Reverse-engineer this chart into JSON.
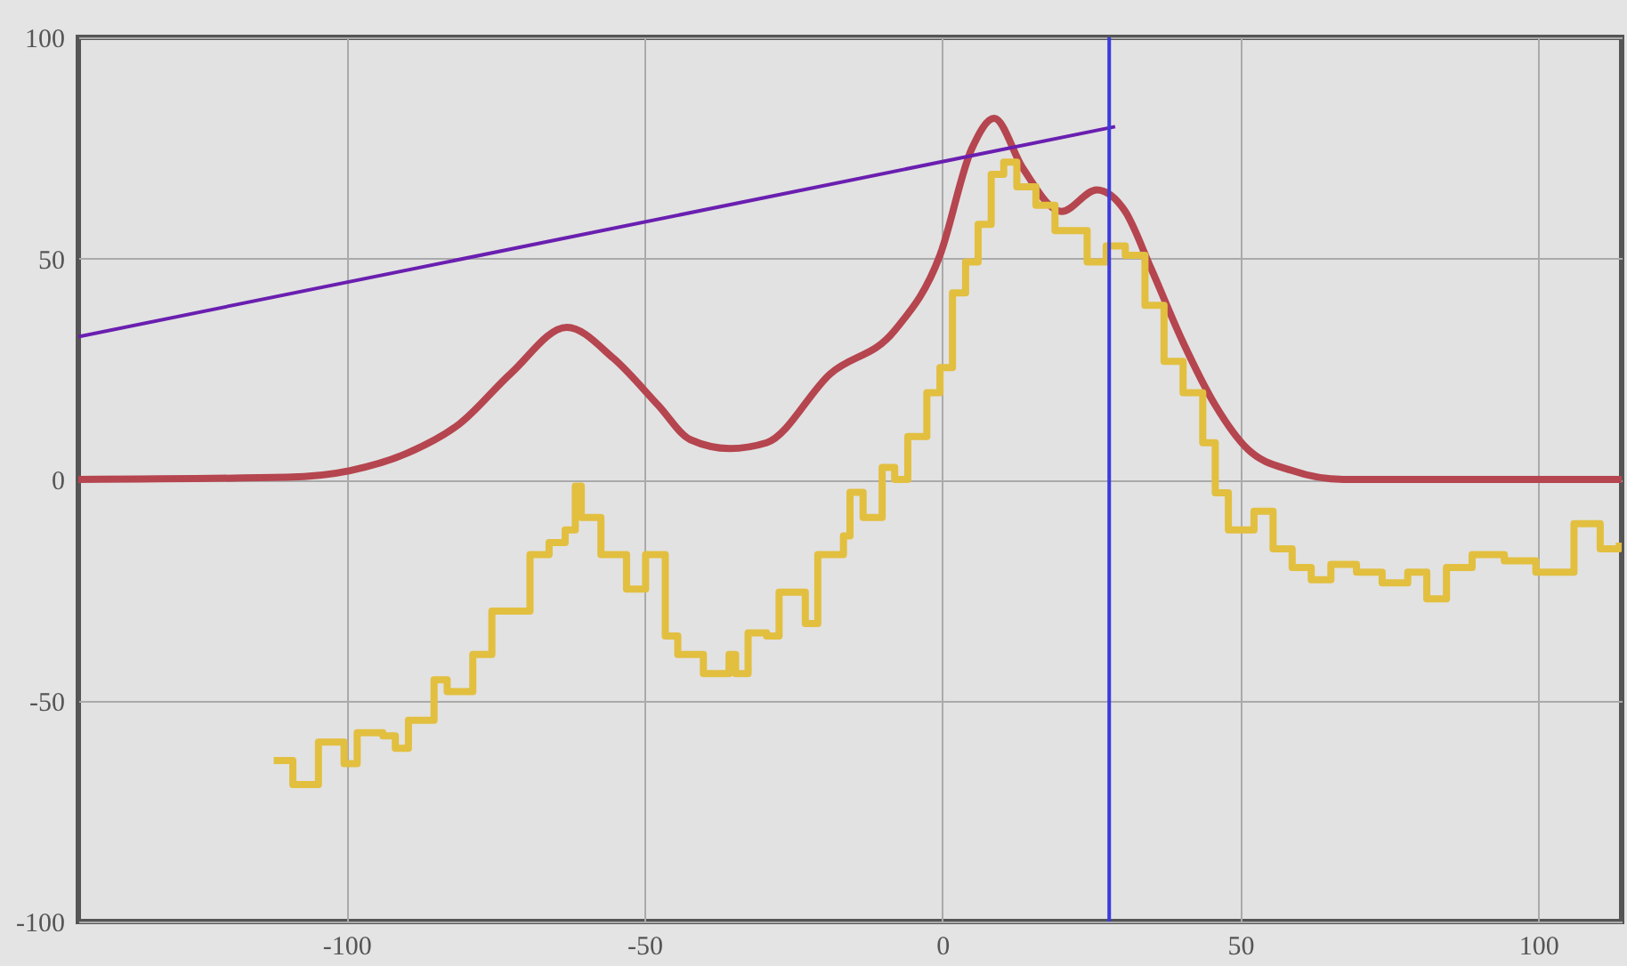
{
  "chart_data": {
    "type": "line",
    "xlim": [
      -145,
      114
    ],
    "ylim": [
      -100,
      100
    ],
    "xticks": [
      -100,
      -50,
      0,
      50,
      100
    ],
    "yticks": [
      -100,
      -50,
      0,
      50,
      100
    ],
    "grid": true,
    "marker": "none",
    "series": [
      {
        "color": "#b5454f",
        "line_style": "solid",
        "x": [
          -145,
          -110,
          -99.4,
          -89.7,
          -81,
          -72.4,
          -63,
          -55.2,
          -47.7,
          -42.3,
          -35.7,
          -29.5,
          -18.8,
          -8,
          -0.4,
          4.9,
          8.7,
          13.5,
          20,
          25.9,
          30.7,
          35,
          40.4,
          45.8,
          51.2,
          58.7,
          67.3,
          114
        ],
        "values": [
          0,
          0.5,
          2,
          6,
          12.6,
          24,
          34.4,
          27.4,
          16.8,
          9,
          7,
          8.3,
          23.9,
          33.7,
          50.7,
          74.7,
          81.7,
          70.4,
          60.6,
          65.5,
          60.6,
          47.8,
          31,
          16.8,
          6.9,
          2,
          0,
          0
        ]
      },
      {
        "type": "step",
        "color": "#e2bf3f",
        "line_style": "solid",
        "x": [
          -112.2,
          -109,
          -104.7,
          -100.4,
          -98.2,
          -93.9,
          -91.8,
          -89.6,
          -85.3,
          -83.1,
          -78.8,
          -75.6,
          -71.3,
          -69.2,
          -66,
          -63.3,
          -61.6,
          -60.6,
          -57.3,
          -53,
          -49.8,
          -46.5,
          -44.4,
          -40.1,
          -35.8,
          -34.7,
          -32.6,
          -29.5,
          -27.4,
          -23,
          -20.9,
          -16.6,
          -15.5,
          -13.3,
          -10.1,
          -8,
          -5.8,
          -2.6,
          -0.4,
          1.7,
          3.9,
          6,
          8.2,
          10.3,
          12.5,
          15.7,
          18.9,
          22.1,
          24.3,
          27.5,
          30.7,
          34,
          37.2,
          40.4,
          43.7,
          45.8,
          48,
          52.3,
          55.5,
          58.7,
          61.9,
          65.2,
          69.5,
          73.8,
          78.1,
          81.3,
          84.6,
          88.9,
          94.3,
          99.6,
          106,
          110.4,
          113.6
        ],
        "values": [
          -63.6,
          -69,
          -59.4,
          -64.3,
          -57.3,
          -58,
          -60.8,
          -54.5,
          -45.3,
          -48,
          -39.6,
          -29.8,
          -29.8,
          -17,
          -14.3,
          -11.4,
          -1.5,
          -8.6,
          -17,
          -24.8,
          -17,
          -35.4,
          -39.6,
          -43.9,
          -39.6,
          -43.9,
          -34.7,
          -35.4,
          -25.5,
          -32.6,
          -17,
          -12.8,
          -2.9,
          -8.6,
          2.7,
          0,
          9.7,
          19.6,
          25.3,
          42.2,
          49.2,
          57.7,
          69,
          71.8,
          66.2,
          62,
          56.3,
          56.3,
          49.2,
          52.8,
          50.7,
          39.4,
          26.7,
          19.6,
          8.3,
          -3,
          -11.4,
          -7.2,
          -15.7,
          -19.9,
          -22.7,
          -19.2,
          -21,
          -23.4,
          -21,
          -27,
          -19.9,
          -17,
          -18.4,
          -21,
          -10,
          -15.7,
          -14.3
        ]
      },
      {
        "color": "#6a1fb0",
        "line_style": "solid",
        "x": [
          -145,
          29
        ],
        "values": [
          32.3,
          79.8
        ]
      }
    ],
    "ref_lines": [
      {
        "axis": "x",
        "value": 28,
        "color": "#3b3bdc",
        "line_style": "solid"
      }
    ]
  }
}
